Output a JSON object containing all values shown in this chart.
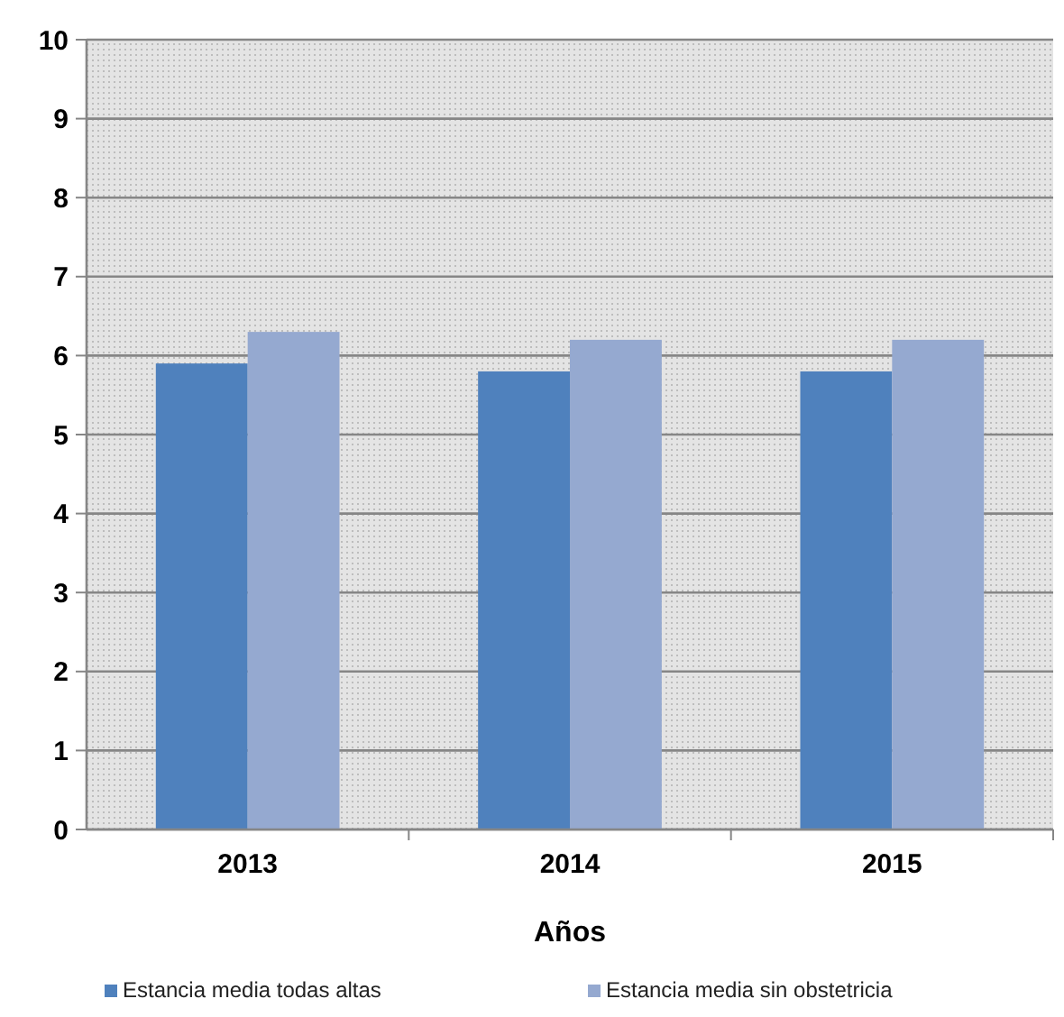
{
  "chart_data": {
    "type": "bar",
    "xlabel": "Años",
    "categories": [
      "2013",
      "2014",
      "2015"
    ],
    "series": [
      {
        "name": "Estancia media todas altas",
        "color": "#4f81bd",
        "values": [
          5.9,
          5.8,
          5.8
        ]
      },
      {
        "name": "Estancia media sin obstetricia",
        "color": "#95a9d0",
        "values": [
          6.3,
          6.2,
          6.2
        ]
      }
    ],
    "ylim": [
      0,
      10
    ],
    "yticks": [
      0,
      1,
      2,
      3,
      4,
      5,
      6,
      7,
      8,
      9,
      10
    ],
    "grid": "y",
    "legend": "bottom"
  }
}
